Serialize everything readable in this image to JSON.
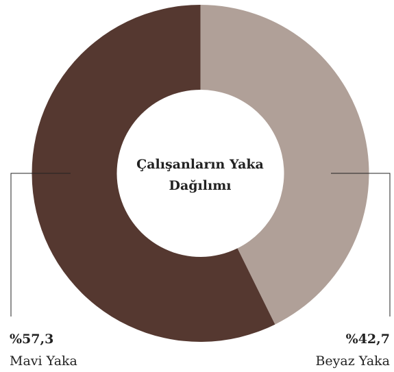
{
  "chart_data": {
    "type": "pie",
    "title": "Çalışanların Yaka Dağılımı",
    "categories": [
      "Beyaz Yaka",
      "Mavi Yaka"
    ],
    "values": [
      42.7,
      57.3
    ],
    "value_labels": [
      "%42,7",
      "%57,3"
    ],
    "colors": [
      "#b0a098",
      "#553830"
    ]
  }
}
